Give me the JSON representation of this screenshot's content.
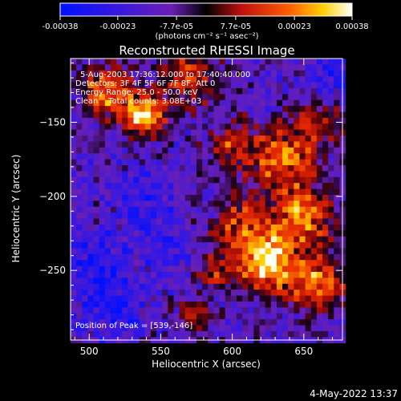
{
  "chart_data": {
    "type": "heatmap",
    "title": "Reconstructed RHESSI Image",
    "xlabel": "Heliocentric X (arcsec)",
    "ylabel": "Heliocentric Y (arcsec)",
    "xlim": [
      487,
      677
    ],
    "ylim": [
      -297,
      -107
    ],
    "xticks": [
      500,
      550,
      600,
      650
    ],
    "yticks": [
      -150,
      -200,
      -250
    ],
    "colorbar": {
      "colormap": "blue-purple-red-yellow-white",
      "range": [
        -0.00038,
        0.00038
      ],
      "tick_values": [
        -0.00038,
        -0.00023,
        -7.7e-05,
        7.7e-05,
        0.00023,
        0.00038
      ],
      "tick_labels": [
        "-0.00038",
        "-0.00023",
        "-7.7e-05",
        "7.7e-05",
        "0.00023",
        "0.00038"
      ],
      "unit_label": "(photons cm⁻² s⁻¹ asec⁻²)"
    },
    "annotations": [
      "5-Aug-2003 17:36:12.000 to 17:40:40.000",
      "Detectors: 3F 4F 5F 6F 7F 8F, Att 0",
      "Energy Range: 25.0 - 50.0 keV",
      "Clean    Total counts: 3.08E+03"
    ],
    "peak_label": "Position of Peak = [539,-146]",
    "peak": {
      "x": 539,
      "y": -146
    },
    "bright_regions": [
      {
        "x": 539,
        "y": -146,
        "radius": 14,
        "amplitude": 1.0
      },
      {
        "x": 512,
        "y": -130,
        "radius": 18,
        "amplitude": 0.75
      },
      {
        "x": 570,
        "y": -120,
        "radius": 20,
        "amplitude": 0.55
      },
      {
        "x": 600,
        "y": -165,
        "radius": 16,
        "amplitude": 0.5
      },
      {
        "x": 635,
        "y": -175,
        "radius": 22,
        "amplitude": 0.7
      },
      {
        "x": 660,
        "y": -150,
        "radius": 16,
        "amplitude": 0.45
      },
      {
        "x": 605,
        "y": -220,
        "radius": 20,
        "amplitude": 0.55
      },
      {
        "x": 650,
        "y": -215,
        "radius": 22,
        "amplitude": 0.7
      },
      {
        "x": 625,
        "y": -245,
        "radius": 20,
        "amplitude": 0.95
      },
      {
        "x": 660,
        "y": -260,
        "radius": 18,
        "amplitude": 0.75
      },
      {
        "x": 588,
        "y": -250,
        "radius": 14,
        "amplitude": 0.45
      },
      {
        "x": 575,
        "y": -280,
        "radius": 12,
        "amplitude": 0.4
      }
    ],
    "dark_regions": [
      {
        "x": 505,
        "y": -250,
        "radius": 28,
        "amplitude": 0.9
      },
      {
        "x": 540,
        "y": -205,
        "radius": 20,
        "amplitude": 0.7
      },
      {
        "x": 520,
        "y": -282,
        "radius": 18,
        "amplitude": 0.6
      },
      {
        "x": 672,
        "y": -120,
        "radius": 16,
        "amplitude": 0.7
      },
      {
        "x": 560,
        "y": -240,
        "radius": 18,
        "amplitude": 0.5
      }
    ]
  },
  "footer": {
    "timestamp": "4-May-2022 13:37"
  }
}
